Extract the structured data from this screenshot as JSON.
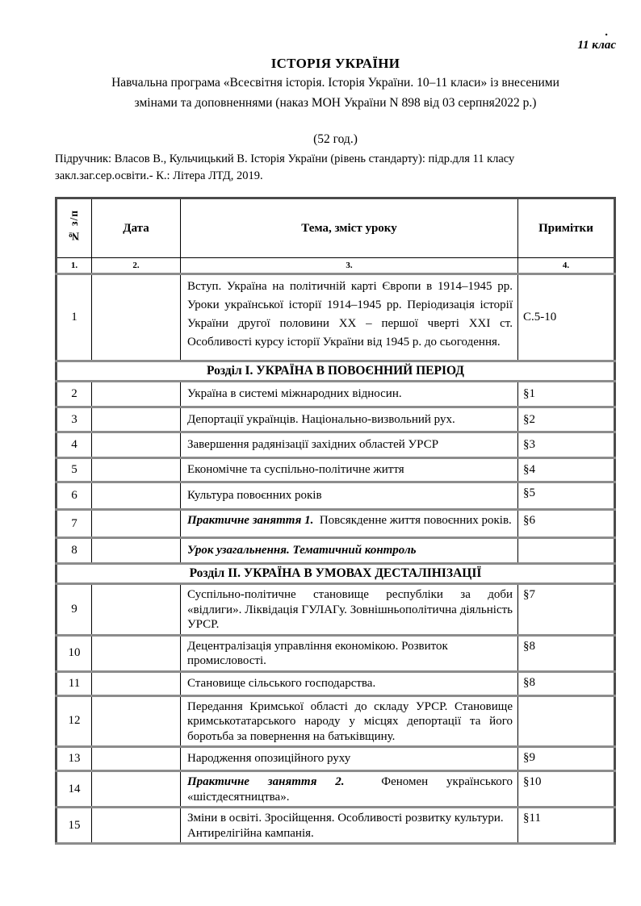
{
  "page": {
    "corner_dot": ".",
    "grade_label": "11 клас",
    "title": "ІСТОРІЯ УКРАЇНИ",
    "subtitle_lines": [
      "Навчальна програма «Всесвітня історія. Історія України. 10–11 класи»  із внесеними",
      "змінами та доповненнями (наказ МОН України N 898 від 03 серпня2022 р.)"
    ],
    "hours": "(52 год.)",
    "textbook_lines": [
      "Підручник: Власов В., Кульчицький В. Історія України (рівень стандарту): підр.для 11 класу",
      "закл.заг.сер.освіти.- К.: Літера ЛТД, 2019."
    ]
  },
  "table": {
    "headers": [
      "№  з/п",
      "Дата",
      "Тема, зміст уроку",
      "Примітки"
    ],
    "col_numbers": [
      "1.",
      "2.",
      "3.",
      "4."
    ],
    "rows": [
      {
        "type": "lesson",
        "num": "1",
        "topic": "Вступ. Україна на політичній карті Європи в 1914–1945 рр. Уроки української історії 1914–1945 рр. Періодизація історії України другої половини ХХ – першої чверті ХХІ ст. Особливості курсу історії України від 1945 р. до сьогодення.",
        "note": "С.5-10"
      },
      {
        "type": "section",
        "label": "Розділ І. УКРАЇНА В ПОВОЄННИЙ ПЕРІОД"
      },
      {
        "type": "lesson",
        "num": "2",
        "topic": "Україна в системі міжнародних відносин.",
        "note": "§1"
      },
      {
        "type": "lesson",
        "num": "3",
        "topic": "Депортації українців. Національно-визвольний рух.",
        "note": "§2"
      },
      {
        "type": "lesson",
        "num": "4",
        "topic": "Завершення радянізації західних областей УРСР",
        "note": "§3"
      },
      {
        "type": "lesson",
        "num": "5",
        "topic": "Економічне та суспільно-політичне життя",
        "note": "§4"
      },
      {
        "type": "lesson",
        "num": "6",
        "topic": "Культура повоєнних років",
        "note": "§5"
      },
      {
        "type": "lesson",
        "num": "7",
        "lead": "Практичне заняття 1.",
        "topic": "Повсякденне життя повоєнних років.",
        "note": "§6"
      },
      {
        "type": "lesson",
        "num": "8",
        "lead": "Урок узагальнення. Тематичний контроль",
        "topic": "",
        "note": ""
      },
      {
        "type": "section",
        "label": "Розділ  ІІ. УКРАЇНА В УМОВАХ ДЕСТАЛІНІЗАЦІЇ"
      },
      {
        "type": "lesson",
        "num": "9",
        "topic": "Суспільно-політичне становище республіки за доби «відлиги». Ліквідація ГУЛАГу. Зовнішньополітична діяльність УРСР.",
        "note": "§7"
      },
      {
        "type": "lesson",
        "num": "10",
        "topic": "Децентралізація управління економікою. Розвиток промисловості.",
        "note": "§8"
      },
      {
        "type": "lesson",
        "num": "11",
        "topic": "Становище сільського господарства.",
        "note": "§8"
      },
      {
        "type": "lesson",
        "num": "12",
        "topic": "Передання Кримської області до складу УРСР. Становище кримськотатарського народу у місцях депортації та його боротьба за повернення на батьківщину.",
        "note": ""
      },
      {
        "type": "lesson",
        "num": "13",
        "topic": "Народження опозиційного руху",
        "note": "§9"
      },
      {
        "type": "lesson",
        "num": "14",
        "lead": "Практичне заняття 2.",
        "topic": "Феномен українського «шістдесятництва».",
        "note": "§10"
      },
      {
        "type": "lesson",
        "num": "15",
        "topic": "Зміни в освіті. Зросійщення. Особливості розвитку культури. Антирелігійна кампанія.",
        "note": "§11"
      }
    ]
  }
}
